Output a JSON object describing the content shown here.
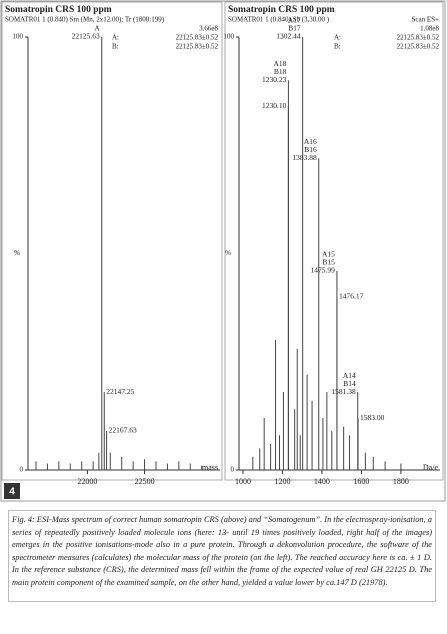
{
  "figure_label": "4",
  "caption": "Fig. 4: ESI-Mass spectrum of correct human somatropin CRS (above) and “Somatogenum”. In the electrospray-ionisation, a series of repeatedly positively loaded molecule ions (here: 13- until 19 times positively loaded, right half of the images) emerges in the positive ionisations-mode also in a pure protein. Through a dekonvolution procedure, the software of the spectrometer measures (calculates) the molecular mass of the protein (on the left). The reached accuracy here is ca. ± 1 D. In the reference substance (CRS), the determined mass fell within the frame of the expected value of real GH 22125 D. The main protein component of the examined sample, on the other hand, yielded a value lower by ca.147 D (21978).",
  "chart_data": [
    {
      "type": "spectrum",
      "title": "Somatropin CRS 100 ppm",
      "header": "SOMATR01 1 (0.840) Sm (Mn, 2x12.00); Tr (1800:199)",
      "scale": "3.66e8",
      "stats": [
        {
          "key": "A:",
          "value": "22125.83±0.52"
        },
        {
          "key": "B:",
          "value": "22125.83±0.52"
        }
      ],
      "xlabel": "mass",
      "ylabel": "%",
      "xlim": [
        21480,
        23160
      ],
      "xticks": [
        22000,
        22500
      ],
      "ylim": [
        0,
        100
      ],
      "yticks": [
        0,
        100
      ],
      "color": "#444444",
      "x": [
        21550,
        21650,
        21750,
        21850,
        21950,
        22050,
        22100,
        22125.63,
        22147.25,
        22167.63,
        22200,
        22300,
        22400,
        22500,
        22600,
        22700,
        22800,
        22900,
        23000
      ],
      "values": [
        2,
        1.5,
        2,
        1.5,
        2,
        2,
        4,
        100,
        18,
        9,
        4,
        3,
        2,
        2.5,
        2,
        1.5,
        2,
        1.5,
        1
      ],
      "peak_labels": [
        null,
        null,
        null,
        null,
        null,
        null,
        null,
        [
          "A",
          "22125.63"
        ],
        [
          "22147.25"
        ],
        [
          "22167.63"
        ],
        null,
        null,
        null,
        null,
        null,
        null,
        null,
        null,
        null
      ],
      "label_align": [
        null,
        null,
        null,
        null,
        null,
        null,
        null,
        "end",
        "start",
        "start",
        null,
        null,
        null,
        null,
        null,
        null,
        null,
        null,
        null
      ]
    },
    {
      "type": "spectrum",
      "title": "Somatropin CRS 100 ppm",
      "header": "SOMATR01 1 (0.840) Sb (3,30.00 )",
      "scan": "Scan ES+",
      "scale": "1.08e8",
      "stats": [
        {
          "key": "A:",
          "value": "22125.83±0.52"
        },
        {
          "key": "B:",
          "value": "22125.83±0.52"
        }
      ],
      "xlabel": "Da/e",
      "ylabel": "%",
      "xlim": [
        980,
        1998
      ],
      "xticks": [
        1000,
        1200,
        1400,
        1600,
        1800
      ],
      "ylim": [
        0,
        100
      ],
      "yticks": [
        0,
        100
      ],
      "color": "#444444",
      "x": [
        1050,
        1085,
        1107.5,
        1140,
        1165,
        1185,
        1205,
        1230.1,
        1230.23,
        1262,
        1275,
        1290,
        1302.44,
        1325,
        1350,
        1383.88,
        1405,
        1425,
        1450,
        1475.99,
        1476.17,
        1510,
        1540,
        1581.38,
        1583.0,
        1620,
        1660,
        1720,
        1800
      ],
      "values": [
        3,
        5,
        12,
        6,
        30,
        8,
        18,
        84,
        90,
        14,
        28,
        8,
        100,
        22,
        16,
        72,
        12,
        18,
        9,
        46,
        40,
        10,
        8,
        18,
        12,
        4,
        3,
        2,
        1.5
      ],
      "peak_labels": [
        null,
        null,
        null,
        null,
        null,
        null,
        null,
        [
          "1230.10"
        ],
        [
          "A18",
          "B18",
          "1230.23"
        ],
        null,
        null,
        null,
        [
          "A17",
          "B17",
          "1302.44"
        ],
        null,
        null,
        [
          "A16",
          "B16",
          "1383.88"
        ],
        null,
        null,
        null,
        [
          "A15",
          "B15",
          "1475.99"
        ],
        [
          "1476.17"
        ],
        null,
        null,
        [
          "A14",
          "B14",
          "1581.38"
        ],
        [
          "1583.00"
        ],
        null,
        null,
        null,
        null
      ],
      "label_align": [
        null,
        null,
        null,
        null,
        null,
        null,
        null,
        "end",
        "end",
        null,
        null,
        null,
        "end",
        null,
        null,
        "end",
        null,
        null,
        null,
        "end",
        "start",
        null,
        null,
        "end",
        "start",
        null,
        null,
        null,
        null
      ]
    }
  ]
}
